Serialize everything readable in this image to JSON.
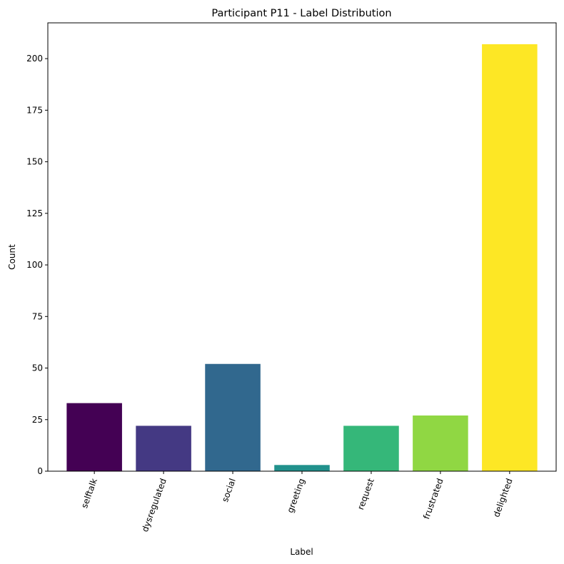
{
  "chart_data": {
    "type": "bar",
    "title": "Participant P11 - Label Distribution",
    "xlabel": "Label",
    "ylabel": "Count",
    "categories": [
      "selftalk",
      "dysregulated",
      "social",
      "greeting",
      "request",
      "frustrated",
      "delighted"
    ],
    "values": [
      33,
      22,
      52,
      3,
      22,
      27,
      207
    ],
    "colors": [
      "#440154",
      "#443983",
      "#31688e",
      "#21918c",
      "#35b779",
      "#90d743",
      "#fde725"
    ],
    "yticks": [
      0,
      25,
      50,
      75,
      100,
      125,
      150,
      175,
      200
    ],
    "ylim": [
      0,
      217.35
    ],
    "x_tick_rotation_deg": -70,
    "grid": false,
    "legend": "none"
  }
}
